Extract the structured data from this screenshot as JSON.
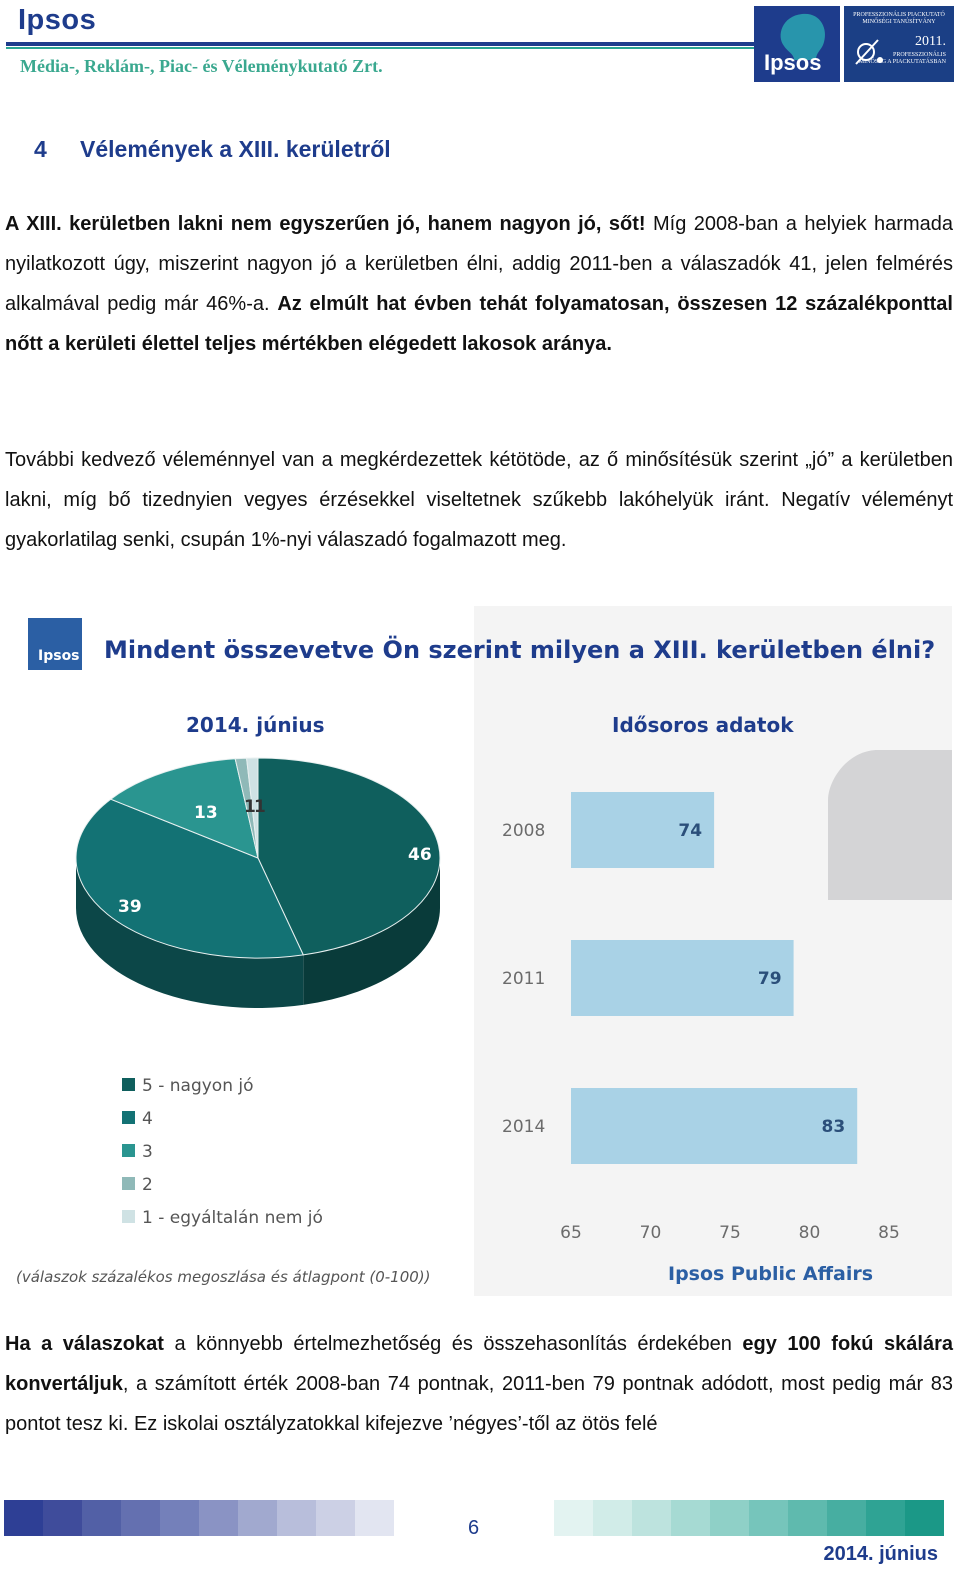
{
  "header": {
    "brand": "Ipsos",
    "subtitle": "Média-, Reklám-, Piac- és Véleménykutató Zrt.",
    "logo_text": "Ipsos",
    "cert_line1": "PROFESSZIONÁLIS PIACKUTATÓ",
    "cert_line2": "MINŐSÉGI TANÚSÍTVÁNY",
    "cert_year": "2011.",
    "cert_line3": "PROFESSZIONÁLIS",
    "cert_line4": "MINŐSÉG A PIACKUTATÁSBAN"
  },
  "section": {
    "number": "4",
    "title": "Vélemények a XIII. kerületről"
  },
  "p1": {
    "b1": "A XIII. kerületben lakni nem egyszerűen jó, hanem nagyon jó, sőt!",
    "t1": " Míg 2008-ban a helyiek harmada nyilatkozott úgy, miszerint nagyon jó a kerületben élni, addig 2011-ben a válaszadók 41, jelen felmérés alkalmával pedig már 46%-a. ",
    "b2": "Az elmúlt hat évben tehát folyamatosan, összesen 12 százalékponttal nőtt a kerületi élettel teljes mértékben elégedett lakosok aránya."
  },
  "p2": {
    "t1": "További kedvező véleménnyel van a megkérdezettek kétötöde, az ő minősítésük szerint „jó” a kerületben lakni, míg bő tizednyien vegyes érzésekkel viseltetnek szűkebb lakóhelyük iránt. Negatív véleményt gyakorlatilag senki, csupán 1%-nyi válaszadó fogalmazott meg."
  },
  "p3": {
    "b1": "Ha a válaszokat",
    "t1": " a könnyebb értelmezhetőség és összehasonlítás érdekében ",
    "b2": "egy 100 fokú skálára konvertáljuk",
    "t2": ", a számított érték 2008-ban 74 pontnak, 2011-ben 79 pontnak adódott, most pedig már 83 pontot tesz ki. Ez iskolai osztályzatokkal kifejezve ’négyes’-től az ötös felé"
  },
  "chart_data": [
    {
      "type": "pie",
      "title": "Mindent összevetve Ön szerint milyen a XIII. kerületben élni?",
      "subtitle": "2014. június",
      "slices": [
        {
          "label": "5 - nagyon jó",
          "value": 46,
          "color": "#0f5f5d"
        },
        {
          "label": "4",
          "value": 39,
          "color": "#137274"
        },
        {
          "label": "3",
          "value": 13,
          "color": "#2a9590"
        },
        {
          "label": "2",
          "value": 1,
          "color": "#8fb9b8"
        },
        {
          "label": "1 - egyáltalán nem jó",
          "value": 1,
          "color": "#cfe2e4"
        }
      ],
      "data_labels": [
        "46",
        "39",
        "13",
        "1",
        "1"
      ],
      "legend_position": "bottom-left",
      "note": "(válaszok százalékos megoszlása és átlagpont (0-100))"
    },
    {
      "type": "bar",
      "orientation": "horizontal",
      "subtitle": "Idősoros adatok",
      "categories": [
        "2008",
        "2011",
        "2014"
      ],
      "values": [
        74,
        79,
        83
      ],
      "xlim": [
        65,
        85
      ],
      "xticks": [
        "65",
        "70",
        "75",
        "80",
        "85"
      ],
      "bar_color": "#a9d2e6",
      "source": "Ipsos Public Affairs"
    }
  ],
  "footer": {
    "page": "6",
    "date": "2014. június",
    "left_colors": [
      "#2e3f95",
      "#3f4c9b",
      "#5260a6",
      "#6470b0",
      "#7480ba",
      "#8a93c4",
      "#a1a9cf",
      "#b8bedb",
      "#ccd0e5",
      "#e2e5f1"
    ],
    "right_colors": [
      "#e3f3f1",
      "#d1ece8",
      "#bde3de",
      "#a6dad3",
      "#8fd0c7",
      "#76c5bb",
      "#5fbaae",
      "#47aea1",
      "#2fa394",
      "#1b9887"
    ]
  }
}
